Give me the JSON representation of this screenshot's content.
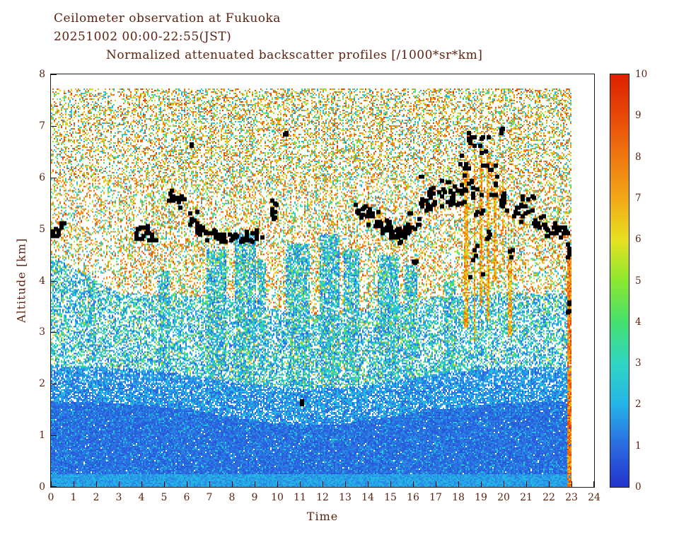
{
  "header": {
    "line1": "Ceilometer observation at Fukuoka",
    "line2": "20251002  00:00-22:55(JST)",
    "title": "Normalized attenuated backscatter profiles [/1000*sr*km]"
  },
  "chart_data": {
    "type": "heatmap",
    "title": "Normalized attenuated backscatter profiles [/1000*sr*km]",
    "station": "Fukuoka",
    "date": "20251002",
    "time_range": "00:00-22:55(JST)",
    "xlabel": "Time",
    "ylabel": "Altitude [km]",
    "xlim": [
      0,
      24
    ],
    "ylim": [
      0,
      8
    ],
    "x_ticks": [
      0,
      1,
      2,
      3,
      4,
      5,
      6,
      7,
      8,
      9,
      10,
      11,
      12,
      13,
      14,
      15,
      16,
      17,
      18,
      19,
      20,
      21,
      22,
      23,
      24
    ],
    "y_ticks": [
      0,
      1,
      2,
      3,
      4,
      5,
      6,
      7,
      8
    ],
    "grid": false,
    "legend_position": "right-colorbar",
    "colorbar": {
      "min": 0,
      "max": 10,
      "ticks": [
        0,
        1,
        2,
        3,
        4,
        5,
        6,
        7,
        8,
        9,
        10
      ],
      "stop_colors": [
        "#2233cc",
        "#2b6ae0",
        "#25b4e8",
        "#2fd6c3",
        "#45e06e",
        "#8ce830",
        "#e8e020",
        "#f2a818",
        "#f07810",
        "#e84808",
        "#dc2000"
      ]
    },
    "cloud_marker_color": "#000000",
    "cloud_base_cluster_format": "[time_hour_center, time_spread, altitude_km_center, altitude_spread, n_points]",
    "cloud_base_clusters": [
      [
        0.15,
        0.2,
        4.95,
        0.1,
        10
      ],
      [
        0.45,
        0.12,
        5.05,
        0.07,
        5
      ],
      [
        4.05,
        0.3,
        4.95,
        0.13,
        16
      ],
      [
        4.45,
        0.15,
        4.85,
        0.08,
        6
      ],
      [
        5.45,
        0.3,
        5.65,
        0.13,
        14
      ],
      [
        5.8,
        0.15,
        5.5,
        0.1,
        5
      ],
      [
        6.2,
        0.04,
        6.65,
        0.04,
        2
      ],
      [
        6.25,
        0.2,
        5.2,
        0.15,
        8
      ],
      [
        6.55,
        0.15,
        5.0,
        0.1,
        6
      ],
      [
        7.0,
        0.35,
        4.9,
        0.12,
        14
      ],
      [
        7.8,
        0.45,
        4.82,
        0.1,
        20
      ],
      [
        8.7,
        0.35,
        4.85,
        0.1,
        14
      ],
      [
        9.15,
        0.15,
        4.9,
        0.08,
        5
      ],
      [
        9.85,
        0.18,
        5.35,
        0.22,
        9
      ],
      [
        10.35,
        0.06,
        6.85,
        0.05,
        3
      ],
      [
        11.1,
        0.04,
        1.65,
        0.04,
        2
      ],
      [
        13.75,
        0.3,
        5.35,
        0.12,
        12
      ],
      [
        14.2,
        0.25,
        5.2,
        0.15,
        10
      ],
      [
        14.6,
        0.35,
        5.05,
        0.15,
        16
      ],
      [
        15.1,
        0.3,
        4.95,
        0.12,
        16
      ],
      [
        15.55,
        0.3,
        4.9,
        0.15,
        14
      ],
      [
        16.0,
        0.25,
        5.15,
        0.2,
        10
      ],
      [
        16.05,
        0.08,
        4.35,
        0.08,
        3
      ],
      [
        16.35,
        0.06,
        6.0,
        0.05,
        2
      ],
      [
        16.5,
        0.3,
        5.55,
        0.2,
        12
      ],
      [
        17.0,
        0.3,
        5.65,
        0.2,
        12
      ],
      [
        17.5,
        0.3,
        5.7,
        0.25,
        12
      ],
      [
        17.95,
        0.3,
        5.6,
        0.3,
        12
      ],
      [
        18.3,
        0.25,
        6.1,
        0.35,
        12
      ],
      [
        18.6,
        0.2,
        6.75,
        0.15,
        8
      ],
      [
        18.85,
        0.25,
        5.55,
        0.3,
        10
      ],
      [
        18.9,
        0.45,
        4.35,
        0.5,
        7
      ],
      [
        19.15,
        0.2,
        6.55,
        0.3,
        8
      ],
      [
        19.3,
        0.12,
        4.9,
        0.12,
        4
      ],
      [
        19.5,
        0.2,
        5.95,
        0.3,
        8
      ],
      [
        19.9,
        0.12,
        6.9,
        0.07,
        4
      ],
      [
        20.0,
        0.2,
        5.6,
        0.25,
        8
      ],
      [
        20.3,
        0.1,
        4.5,
        0.1,
        3
      ],
      [
        20.6,
        0.3,
        5.35,
        0.2,
        10
      ],
      [
        21.1,
        0.3,
        5.5,
        0.2,
        10
      ],
      [
        21.6,
        0.3,
        5.15,
        0.15,
        10
      ],
      [
        22.1,
        0.3,
        5.0,
        0.13,
        12
      ],
      [
        22.55,
        0.25,
        4.95,
        0.12,
        12
      ],
      [
        22.9,
        0.08,
        4.6,
        0.15,
        5
      ],
      [
        22.85,
        0.08,
        3.5,
        0.12,
        4
      ]
    ],
    "render_model": {
      "time_end": 23.03,
      "alt_top": 7.72,
      "bl_base": 1.65,
      "bl_dip": 0.45,
      "bl_dip_center": 11.5,
      "bl_dip_width": 5.5,
      "hi_base": 3.75,
      "cyan_columns": [
        {
          "t": 1.8,
          "w": 0.4,
          "top": 3.6
        },
        {
          "t": 5.0,
          "w": 0.5,
          "top": 4.2
        },
        {
          "t": 7.3,
          "w": 0.9,
          "top": 4.6
        },
        {
          "t": 8.6,
          "w": 0.9,
          "top": 4.9
        },
        {
          "t": 9.3,
          "w": 0.4,
          "top": 4.4
        },
        {
          "t": 10.9,
          "w": 1.1,
          "top": 4.7
        },
        {
          "t": 12.3,
          "w": 0.9,
          "top": 4.9
        },
        {
          "t": 13.3,
          "w": 0.7,
          "top": 4.6
        },
        {
          "t": 14.9,
          "w": 0.9,
          "top": 4.5
        },
        {
          "t": 15.9,
          "w": 0.6,
          "top": 4.3
        },
        {
          "t": 17.6,
          "w": 0.5,
          "top": 4.0
        }
      ],
      "precip_streaks": [
        {
          "t": 18.35,
          "w": 0.14,
          "top": 6.3,
          "bot": 3.1
        },
        {
          "t": 18.72,
          "w": 0.12,
          "top": 6.55,
          "bot": 2.8
        },
        {
          "t": 19.02,
          "w": 0.12,
          "top": 6.6,
          "bot": 3.5
        },
        {
          "t": 19.33,
          "w": 0.14,
          "top": 6.45,
          "bot": 3.2
        },
        {
          "t": 19.62,
          "w": 0.1,
          "top": 6.1,
          "bot": 4.0
        },
        {
          "t": 19.98,
          "w": 0.1,
          "top": 5.9,
          "bot": 4.3
        },
        {
          "t": 20.28,
          "w": 0.14,
          "top": 4.65,
          "bot": 2.9
        },
        {
          "t": 22.92,
          "w": 0.22,
          "top": 4.6,
          "bot": 0.0,
          "strong": true
        }
      ]
    }
  }
}
